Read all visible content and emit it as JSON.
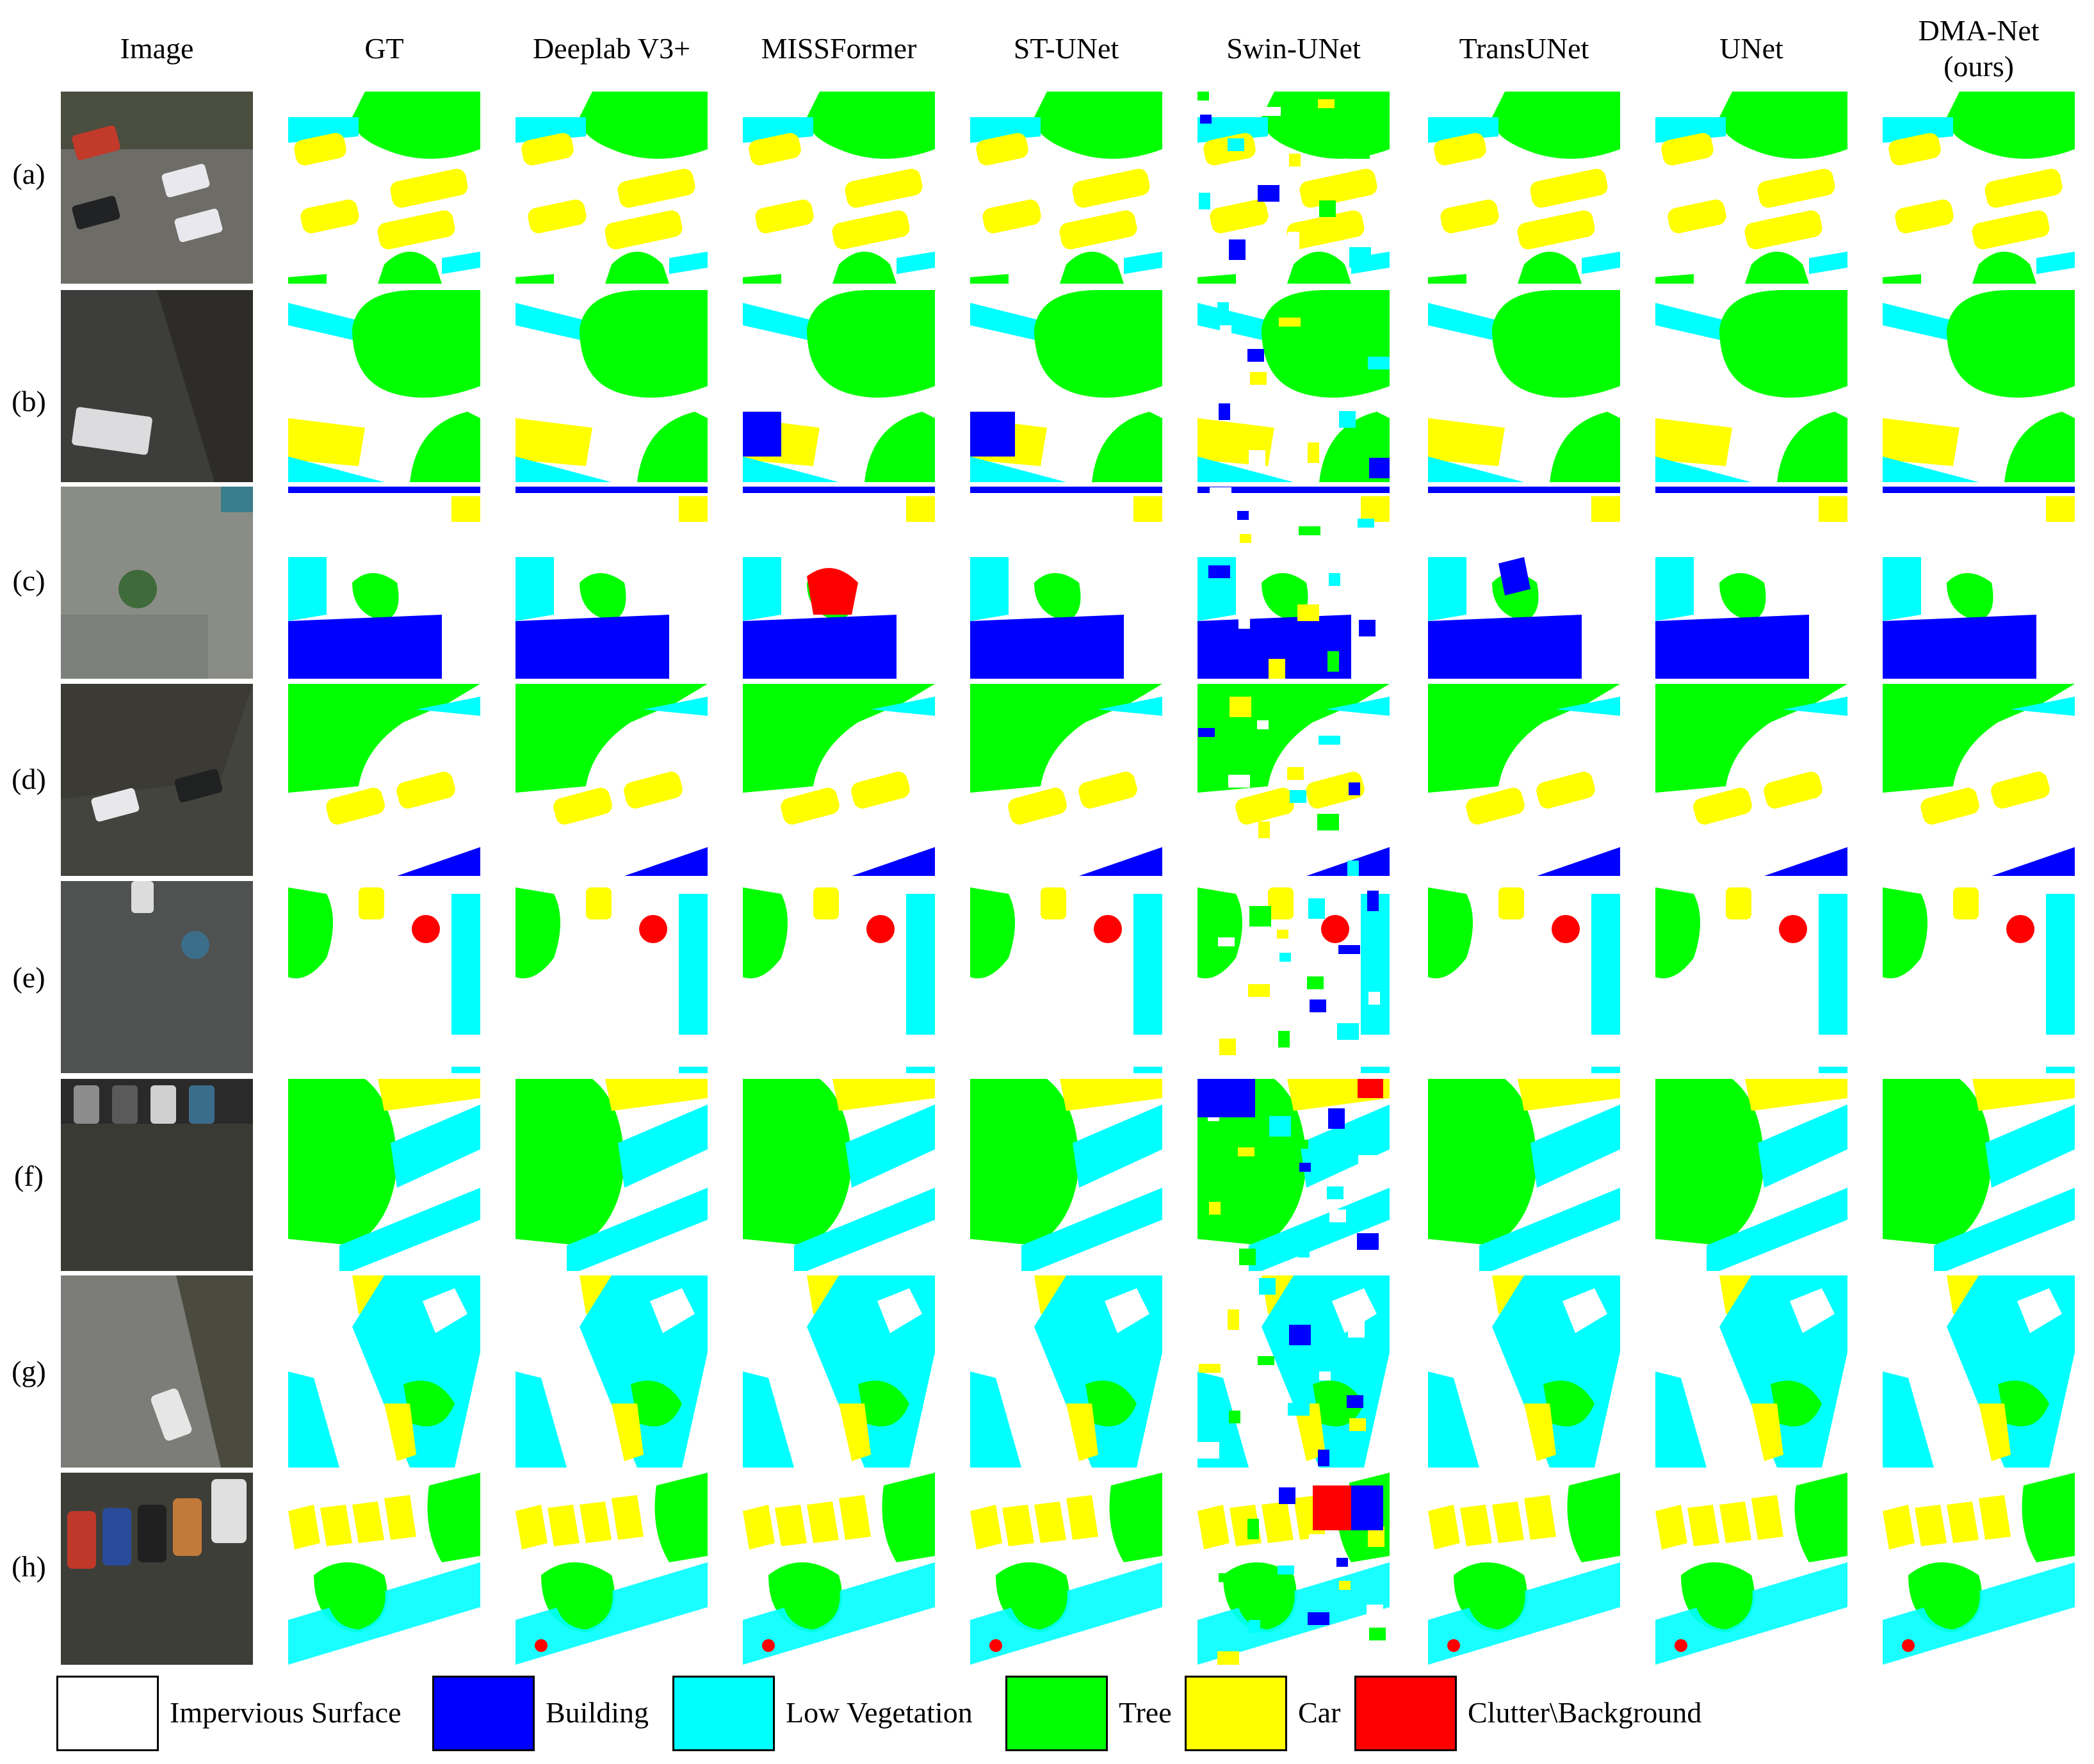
{
  "columns": [
    {
      "key": "image",
      "label": "Image"
    },
    {
      "key": "gt",
      "label": "GT"
    },
    {
      "key": "deeplab",
      "label": "Deeplab V3+"
    },
    {
      "key": "missformer",
      "label": "MISSFormer"
    },
    {
      "key": "stunet",
      "label": "ST-UNet"
    },
    {
      "key": "swinunet",
      "label": "Swin-UNet"
    },
    {
      "key": "transunet",
      "label": "TransUNet"
    },
    {
      "key": "unet",
      "label": "UNet"
    },
    {
      "key": "dmanet",
      "label": "DMA-Net\n(ours)"
    }
  ],
  "rows": [
    "(a)",
    "(b)",
    "(c)",
    "(d)",
    "(e)",
    "(f)",
    "(g)",
    "(h)"
  ],
  "legend": [
    {
      "label": "Impervious Surface",
      "color": "#ffffff"
    },
    {
      "label": "Building",
      "color": "#0000ff"
    },
    {
      "label": "Low Vegetation",
      "color": "#00ffff"
    },
    {
      "label": "Tree",
      "color": "#00ff00"
    },
    {
      "label": "Car",
      "color": "#ffff00"
    },
    {
      "label": "Clutter\\Background",
      "color": "#ff0000"
    }
  ]
}
